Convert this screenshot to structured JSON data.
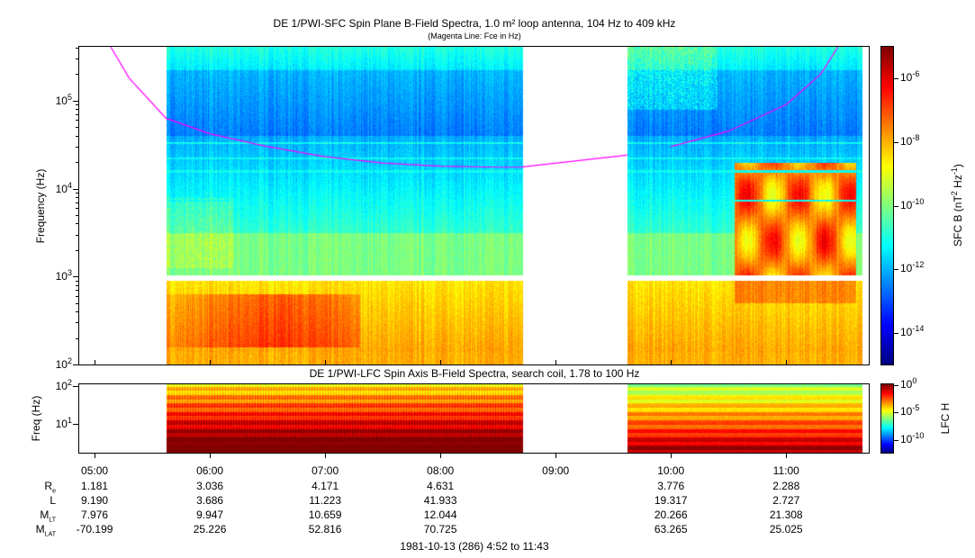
{
  "chart_data": [
    {
      "type": "heatmap",
      "title": "DE 1/PWI-SFC  Spin Plane B-Field Spectra, 1.0 m² loop antenna, 104 Hz to 409 kHz",
      "subtitle": "(Magenta Line: Fce in Hz)",
      "ylabel": "Frequency (Hz)",
      "yscale": "log",
      "ylim": [
        100,
        409000
      ],
      "yticks": [
        {
          "base": "10",
          "exp": "2"
        },
        {
          "base": "10",
          "exp": "3"
        },
        {
          "base": "10",
          "exp": "4"
        },
        {
          "base": "10",
          "exp": "5"
        }
      ],
      "data_intervals_hours": [
        [
          5.62,
          8.71
        ],
        [
          9.62,
          11.66
        ]
      ],
      "gap_band_hz": [
        900,
        1050
      ],
      "colorbar": {
        "label": "SFC B (nT",
        "label_exp1": "2",
        "label_mid": " Hz",
        "label_exp2": "-1",
        "label_end": ")",
        "scale": "log",
        "range": [
          -15,
          -5
        ],
        "ticks": [
          {
            "base": "10",
            "exp": "-6"
          },
          {
            "base": "10",
            "exp": "-8"
          },
          {
            "base": "10",
            "exp": "-10"
          },
          {
            "base": "10",
            "exp": "-12"
          },
          {
            "base": "10",
            "exp": "-14"
          }
        ]
      },
      "fce_line": {
        "color": "#ff00ff",
        "points_hours_hz": [
          [
            5.14,
            409000
          ],
          [
            5.3,
            180000
          ],
          [
            5.62,
            63000
          ],
          [
            6.0,
            42000
          ],
          [
            6.5,
            30000
          ],
          [
            7.0,
            23000
          ],
          [
            7.5,
            19500
          ],
          [
            8.0,
            18000
          ],
          [
            8.5,
            17500
          ],
          [
            8.7,
            17600
          ],
          [
            9.62,
            24000
          ],
          [
            10.0,
            30000
          ],
          [
            10.5,
            45000
          ],
          [
            11.0,
            90000
          ],
          [
            11.3,
            200000
          ],
          [
            11.45,
            409000
          ]
        ]
      }
    },
    {
      "type": "heatmap",
      "title": "DE 1/PWI-LFC  Spin Axis B-Field Spectra, search coil, 1.78 to 100 Hz",
      "ylabel": "Freq (Hz)",
      "yscale": "log",
      "ylim": [
        1.78,
        100
      ],
      "yticks": [
        {
          "base": "10",
          "exp": "2"
        },
        {
          "base": "10",
          "exp": "1"
        }
      ],
      "data_intervals_hours": [
        [
          5.62,
          8.71
        ],
        [
          9.62,
          11.66
        ]
      ],
      "colorbar": {
        "label": "LFC H",
        "scale": "log",
        "range": [
          -12,
          0
        ],
        "ticks": [
          {
            "base": "10",
            "exp": "0"
          },
          {
            "base": "10",
            "exp": "-5"
          },
          {
            "base": "10",
            "exp": "-10"
          }
        ]
      }
    }
  ],
  "xaxis": {
    "range_hours": [
      4.867,
      11.717
    ],
    "ticks": [
      "05:00",
      "06:00",
      "07:00",
      "08:00",
      "09:00",
      "10:00",
      "11:00"
    ],
    "tick_hours": [
      5,
      6,
      7,
      8,
      9,
      10,
      11
    ]
  },
  "ephemeris": {
    "rows": [
      {
        "label": "R",
        "sub": "e",
        "values": [
          "1.181",
          "3.036",
          "4.171",
          "4.631",
          "",
          "3.776",
          "2.288"
        ]
      },
      {
        "label": "L",
        "sub": "",
        "values": [
          "9.190",
          "3.686",
          "11.223",
          "41.933",
          "",
          "19.317",
          "2.727"
        ]
      },
      {
        "label": "M",
        "sub": "LT",
        "values": [
          "7.976",
          "9.947",
          "10.659",
          "12.044",
          "",
          "20.266",
          "21.308"
        ]
      },
      {
        "label": "M",
        "sub": "LAT",
        "values": [
          "-70.199",
          "25.226",
          "52.816",
          "70.725",
          "",
          "63.265",
          "25.025"
        ]
      }
    ],
    "date": "1981-10-13 (286) 4:52 to 11:43"
  }
}
